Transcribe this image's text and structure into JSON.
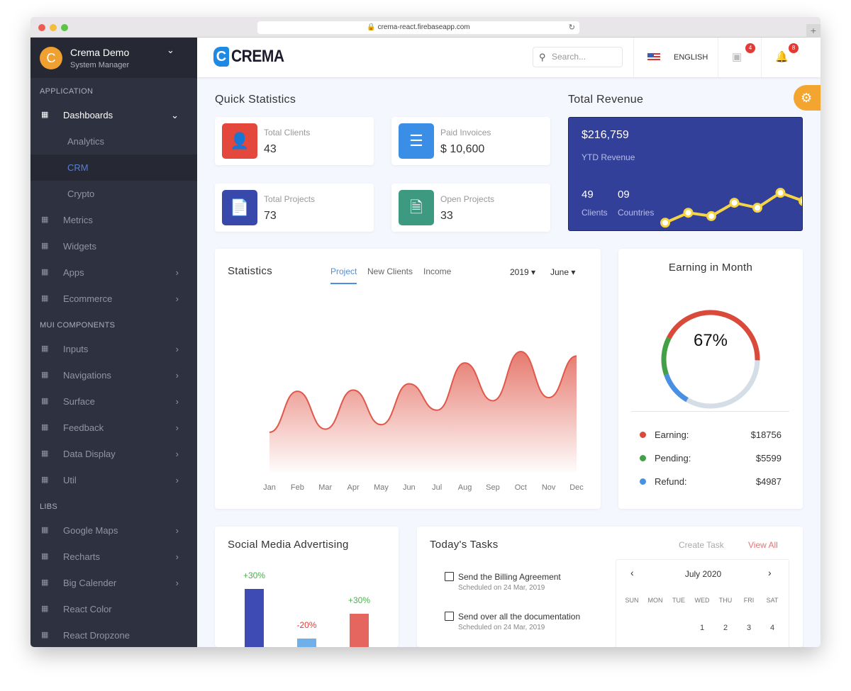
{
  "browser": {
    "url": "crema-react.firebaseapp.com"
  },
  "sidebar": {
    "user": {
      "initial": "C",
      "name": "Crema Demo",
      "role": "System Manager"
    },
    "sections": [
      {
        "title": "APPLICATION",
        "items": [
          {
            "label": "Dashboards",
            "icon": "dashboard-icon",
            "expanded": true,
            "active": true,
            "children": [
              {
                "label": "Analytics"
              },
              {
                "label": "CRM",
                "selected": true
              },
              {
                "label": "Crypto"
              }
            ]
          },
          {
            "label": "Metrics",
            "icon": "metrics-icon"
          },
          {
            "label": "Widgets",
            "icon": "widgets-icon"
          },
          {
            "label": "Apps",
            "icon": "apps-icon",
            "chevron": true
          },
          {
            "label": "Ecommerce",
            "icon": "cart-icon",
            "chevron": true
          }
        ]
      },
      {
        "title": "MUI COMPONENTS",
        "items": [
          {
            "label": "Inputs",
            "icon": "input-icon",
            "chevron": true
          },
          {
            "label": "Navigations",
            "icon": "navigation-icon",
            "chevron": true
          },
          {
            "label": "Surface",
            "icon": "surface-icon",
            "chevron": true
          },
          {
            "label": "Feedback",
            "icon": "feedback-icon",
            "chevron": true
          },
          {
            "label": "Data Display",
            "icon": "data-display-icon",
            "chevron": true
          },
          {
            "label": "Util",
            "icon": "util-icon",
            "chevron": true
          }
        ]
      },
      {
        "title": "LIBS",
        "items": [
          {
            "label": "Google Maps",
            "icon": "map-icon",
            "chevron": true
          },
          {
            "label": "Recharts",
            "icon": "chart-icon",
            "chevron": true
          },
          {
            "label": "Big Calender",
            "icon": "calendar-icon",
            "chevron": true
          },
          {
            "label": "React Color",
            "icon": "color-icon"
          },
          {
            "label": "React Dropzone",
            "icon": "attach-icon"
          }
        ]
      }
    ]
  },
  "header": {
    "logo": "CREMA",
    "search_placeholder": "Search...",
    "language": "ENGLISH",
    "messages_count": "4",
    "notifications_count": "8"
  },
  "quick_stats": {
    "title": "Quick Statistics",
    "cards": [
      {
        "label": "Total Clients",
        "value": "43",
        "color": "#e4473b",
        "icon": "user-icon"
      },
      {
        "label": "Paid Invoices",
        "value": "$ 10,600",
        "color": "#3a8ee6",
        "icon": "invoice-icon"
      },
      {
        "label": "Total Projects",
        "value": "73",
        "color": "#3949ab",
        "icon": "file-icon"
      },
      {
        "label": "Open Projects",
        "value": "33",
        "color": "#3d9a80",
        "icon": "document-icon"
      }
    ]
  },
  "revenue": {
    "title": "Total Revenue",
    "amount": "$216,759",
    "amount_label": "YTD Revenue",
    "clients": "49",
    "clients_label": "Clients",
    "countries": "09",
    "countries_label": "Countries",
    "trend": [
      1,
      4,
      3,
      7,
      5.5,
      10,
      7.5
    ]
  },
  "statistics": {
    "title": "Statistics",
    "tabs": [
      "Project",
      "New Clients",
      "Income"
    ],
    "active_tab": 0,
    "year": "2019",
    "month": "June"
  },
  "chart_data": {
    "type": "area",
    "categories": [
      "Jan",
      "Feb",
      "Mar",
      "Apr",
      "May",
      "Jun",
      "Jul",
      "Aug",
      "Sep",
      "Oct",
      "Nov",
      "Dec"
    ],
    "values": [
      35,
      100,
      40,
      102,
      47,
      112,
      70,
      145,
      85,
      163,
      90,
      156
    ],
    "color": "#e0584a"
  },
  "earning": {
    "title": "Earning in Month",
    "percent": "67%",
    "percent_value": 67,
    "items": [
      {
        "label": "Earning:",
        "value": "$18756",
        "color": "#d94a3a"
      },
      {
        "label": "Pending:",
        "value": "$5599",
        "color": "#43a047"
      },
      {
        "label": "Refund:",
        "value": "$4987",
        "color": "#4a90e2"
      }
    ],
    "track_color": "#d5dde6"
  },
  "social": {
    "title": "Social Media Advertising",
    "bars": [
      {
        "label": "+30%",
        "value": 82,
        "color": "#3f4bb5",
        "label_color": "#4caf50"
      },
      {
        "label": "-20%",
        "value": 12,
        "color": "#6fb0ea",
        "label_color": "#e53935"
      },
      {
        "label": "+30%",
        "value": 47,
        "color": "#e5665e",
        "label_color": "#4caf50"
      }
    ]
  },
  "tasks": {
    "title": "Today's Tasks",
    "create": "Create Task",
    "view_all": "View All",
    "items": [
      {
        "title": "Send the Billing Agreement",
        "date": "Scheduled on 24 Mar, 2019"
      },
      {
        "title": "Send over all the documentation",
        "date": "Scheduled on 24 Mar, 2019"
      }
    ],
    "calendar": {
      "month": "July 2020",
      "weekdays": [
        "SUN",
        "MON",
        "TUE",
        "WED",
        "THU",
        "FRI",
        "SAT"
      ],
      "days": [
        "",
        "",
        "",
        "1",
        "2",
        "3",
        "4"
      ]
    }
  }
}
